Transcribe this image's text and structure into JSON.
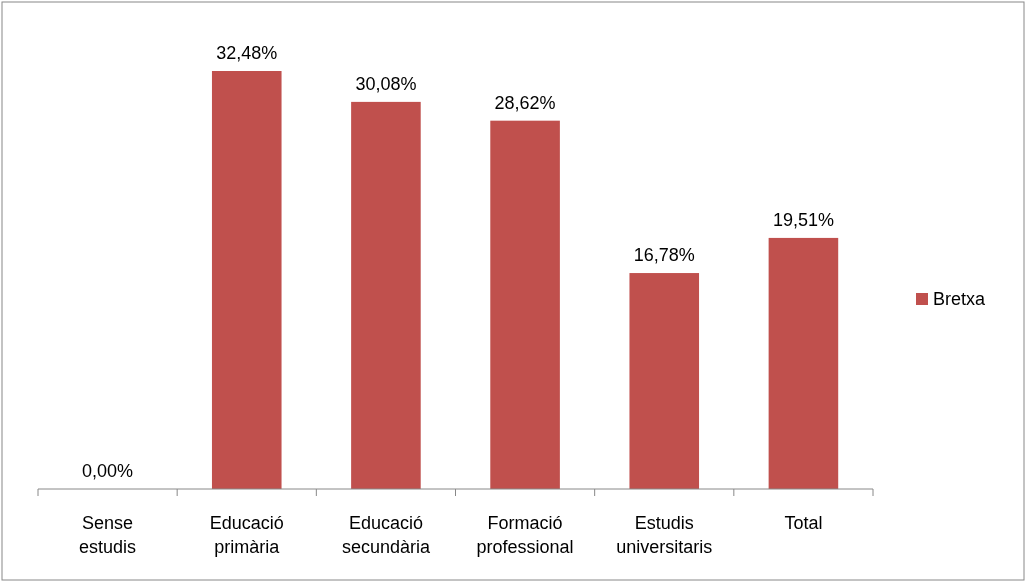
{
  "chart_data": {
    "type": "bar",
    "categories": [
      "Sense estudis",
      "Educació primària",
      "Educació secundària",
      "Formació professional",
      "Estudis universitaris",
      "Total"
    ],
    "series": [
      {
        "name": "Bretxa",
        "color": "#c0504d",
        "values": [
          0,
          32.48,
          30.08,
          28.62,
          16.78,
          19.51
        ],
        "value_labels": [
          "0,00%",
          "32,48%",
          "30,08%",
          "28,62%",
          "16,78%",
          "19,51%"
        ]
      }
    ],
    "legend": "right"
  }
}
